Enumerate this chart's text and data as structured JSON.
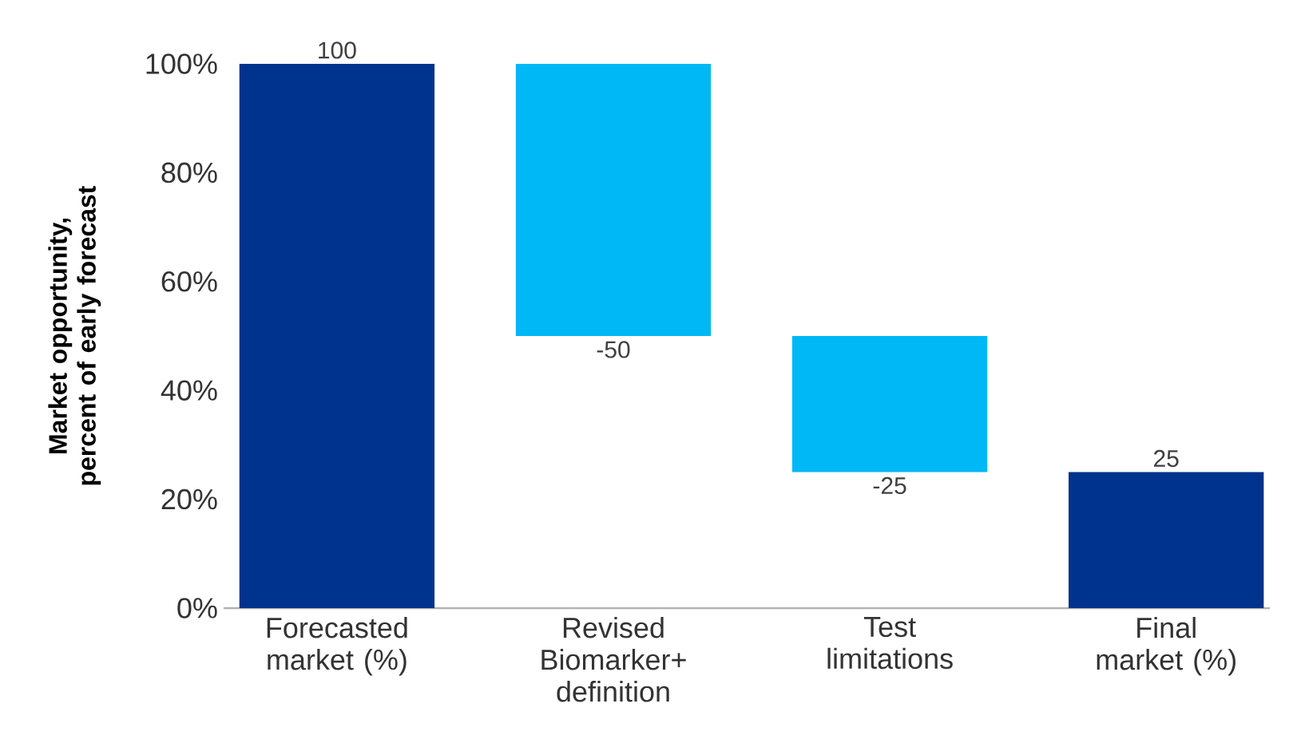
{
  "chart_data": {
    "type": "bar",
    "ylabel": "Market opportunity, percent of early forecast",
    "categories": [
      "Forecasted market (%)",
      "Revised Biomarker+ definition",
      "Test limitations",
      "Final market (%)"
    ],
    "values": [
      100,
      -50,
      -25,
      25
    ],
    "base": [
      0,
      100,
      50,
      0
    ],
    "colors": [
      "#00338d",
      "#00b8f5",
      "#00b8f5",
      "#00338d"
    ],
    "ylim": [
      0,
      100
    ],
    "yticks": [
      {
        "value": 0,
        "label": "0%"
      },
      {
        "value": 20,
        "label": "20%"
      },
      {
        "value": 40,
        "label": "40%"
      },
      {
        "value": 60,
        "label": "60%"
      },
      {
        "value": 80,
        "label": "80%"
      },
      {
        "value": 100,
        "label": "100%"
      }
    ],
    "data_labels": true
  }
}
